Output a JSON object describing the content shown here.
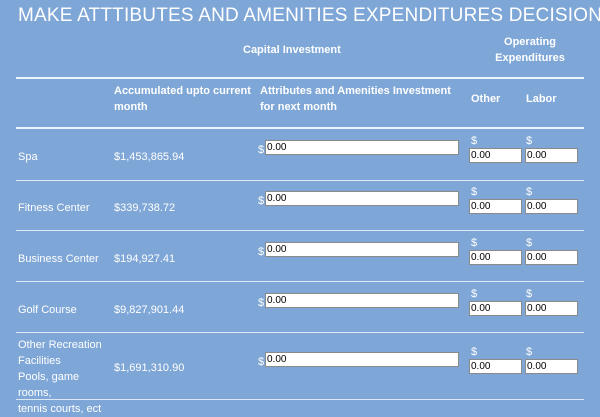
{
  "page_title": "MAKE ATTTIBUTES AND AMENITIES EXPENDITURES DECISIONS",
  "headers": {
    "capital_investment": "Capital Investment",
    "operating_expenditures": "Operating Expenditures",
    "accumulated": "Accumulated upto current month",
    "attributes_investment": "Attributes and Amenities Investment for next month",
    "other": "Other",
    "labor": "Labor"
  },
  "currency_symbol": "$",
  "rows": [
    {
      "name": "Spa",
      "accumulated": "$1,453,865.94",
      "investment": "0.00",
      "other": "0.00",
      "labor": "0.00"
    },
    {
      "name": "Fitness Center",
      "accumulated": "$339,738.72",
      "investment": "0.00",
      "other": "0.00",
      "labor": "0.00"
    },
    {
      "name": "Business Center",
      "accumulated": "$194,927.41",
      "investment": "0.00",
      "other": "0.00",
      "labor": "0.00"
    },
    {
      "name": "Golf Course",
      "accumulated": "$9,827,901.44",
      "investment": "0.00",
      "other": "0.00",
      "labor": "0.00"
    },
    {
      "name_lines": [
        "Other Recreation",
        "Facilities",
        "Pools, game rooms,",
        "tennis courts, ect"
      ],
      "accumulated": "$1,691,310.90",
      "investment": "0.00",
      "other": "0.00",
      "labor": "0.00"
    }
  ]
}
